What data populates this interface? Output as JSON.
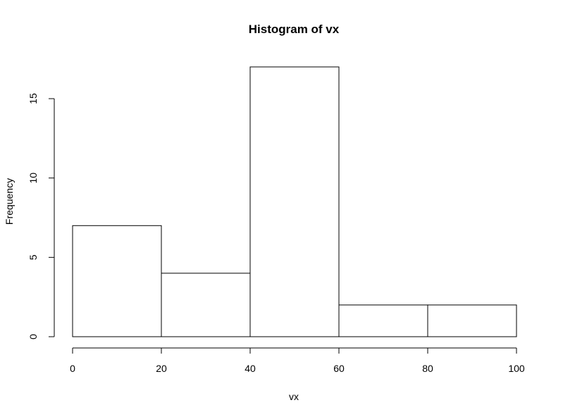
{
  "chart_data": {
    "type": "bar",
    "title": "Histogram of vx",
    "xlabel": "vx",
    "ylabel": "Frequency",
    "bins": [
      {
        "from": 0,
        "to": 20,
        "count": 7
      },
      {
        "from": 20,
        "to": 40,
        "count": 4
      },
      {
        "from": 40,
        "to": 60,
        "count": 17
      },
      {
        "from": 60,
        "to": 80,
        "count": 2
      },
      {
        "from": 80,
        "to": 100,
        "count": 2
      }
    ],
    "x_ticks": [
      0,
      20,
      40,
      60,
      80,
      100
    ],
    "y_ticks": [
      0,
      5,
      10,
      15
    ],
    "xlim": [
      0,
      100
    ],
    "ylim": [
      0,
      17
    ],
    "grid": false,
    "colors": {
      "bar_fill": "#ffffff",
      "bar_stroke": "#000000"
    }
  }
}
